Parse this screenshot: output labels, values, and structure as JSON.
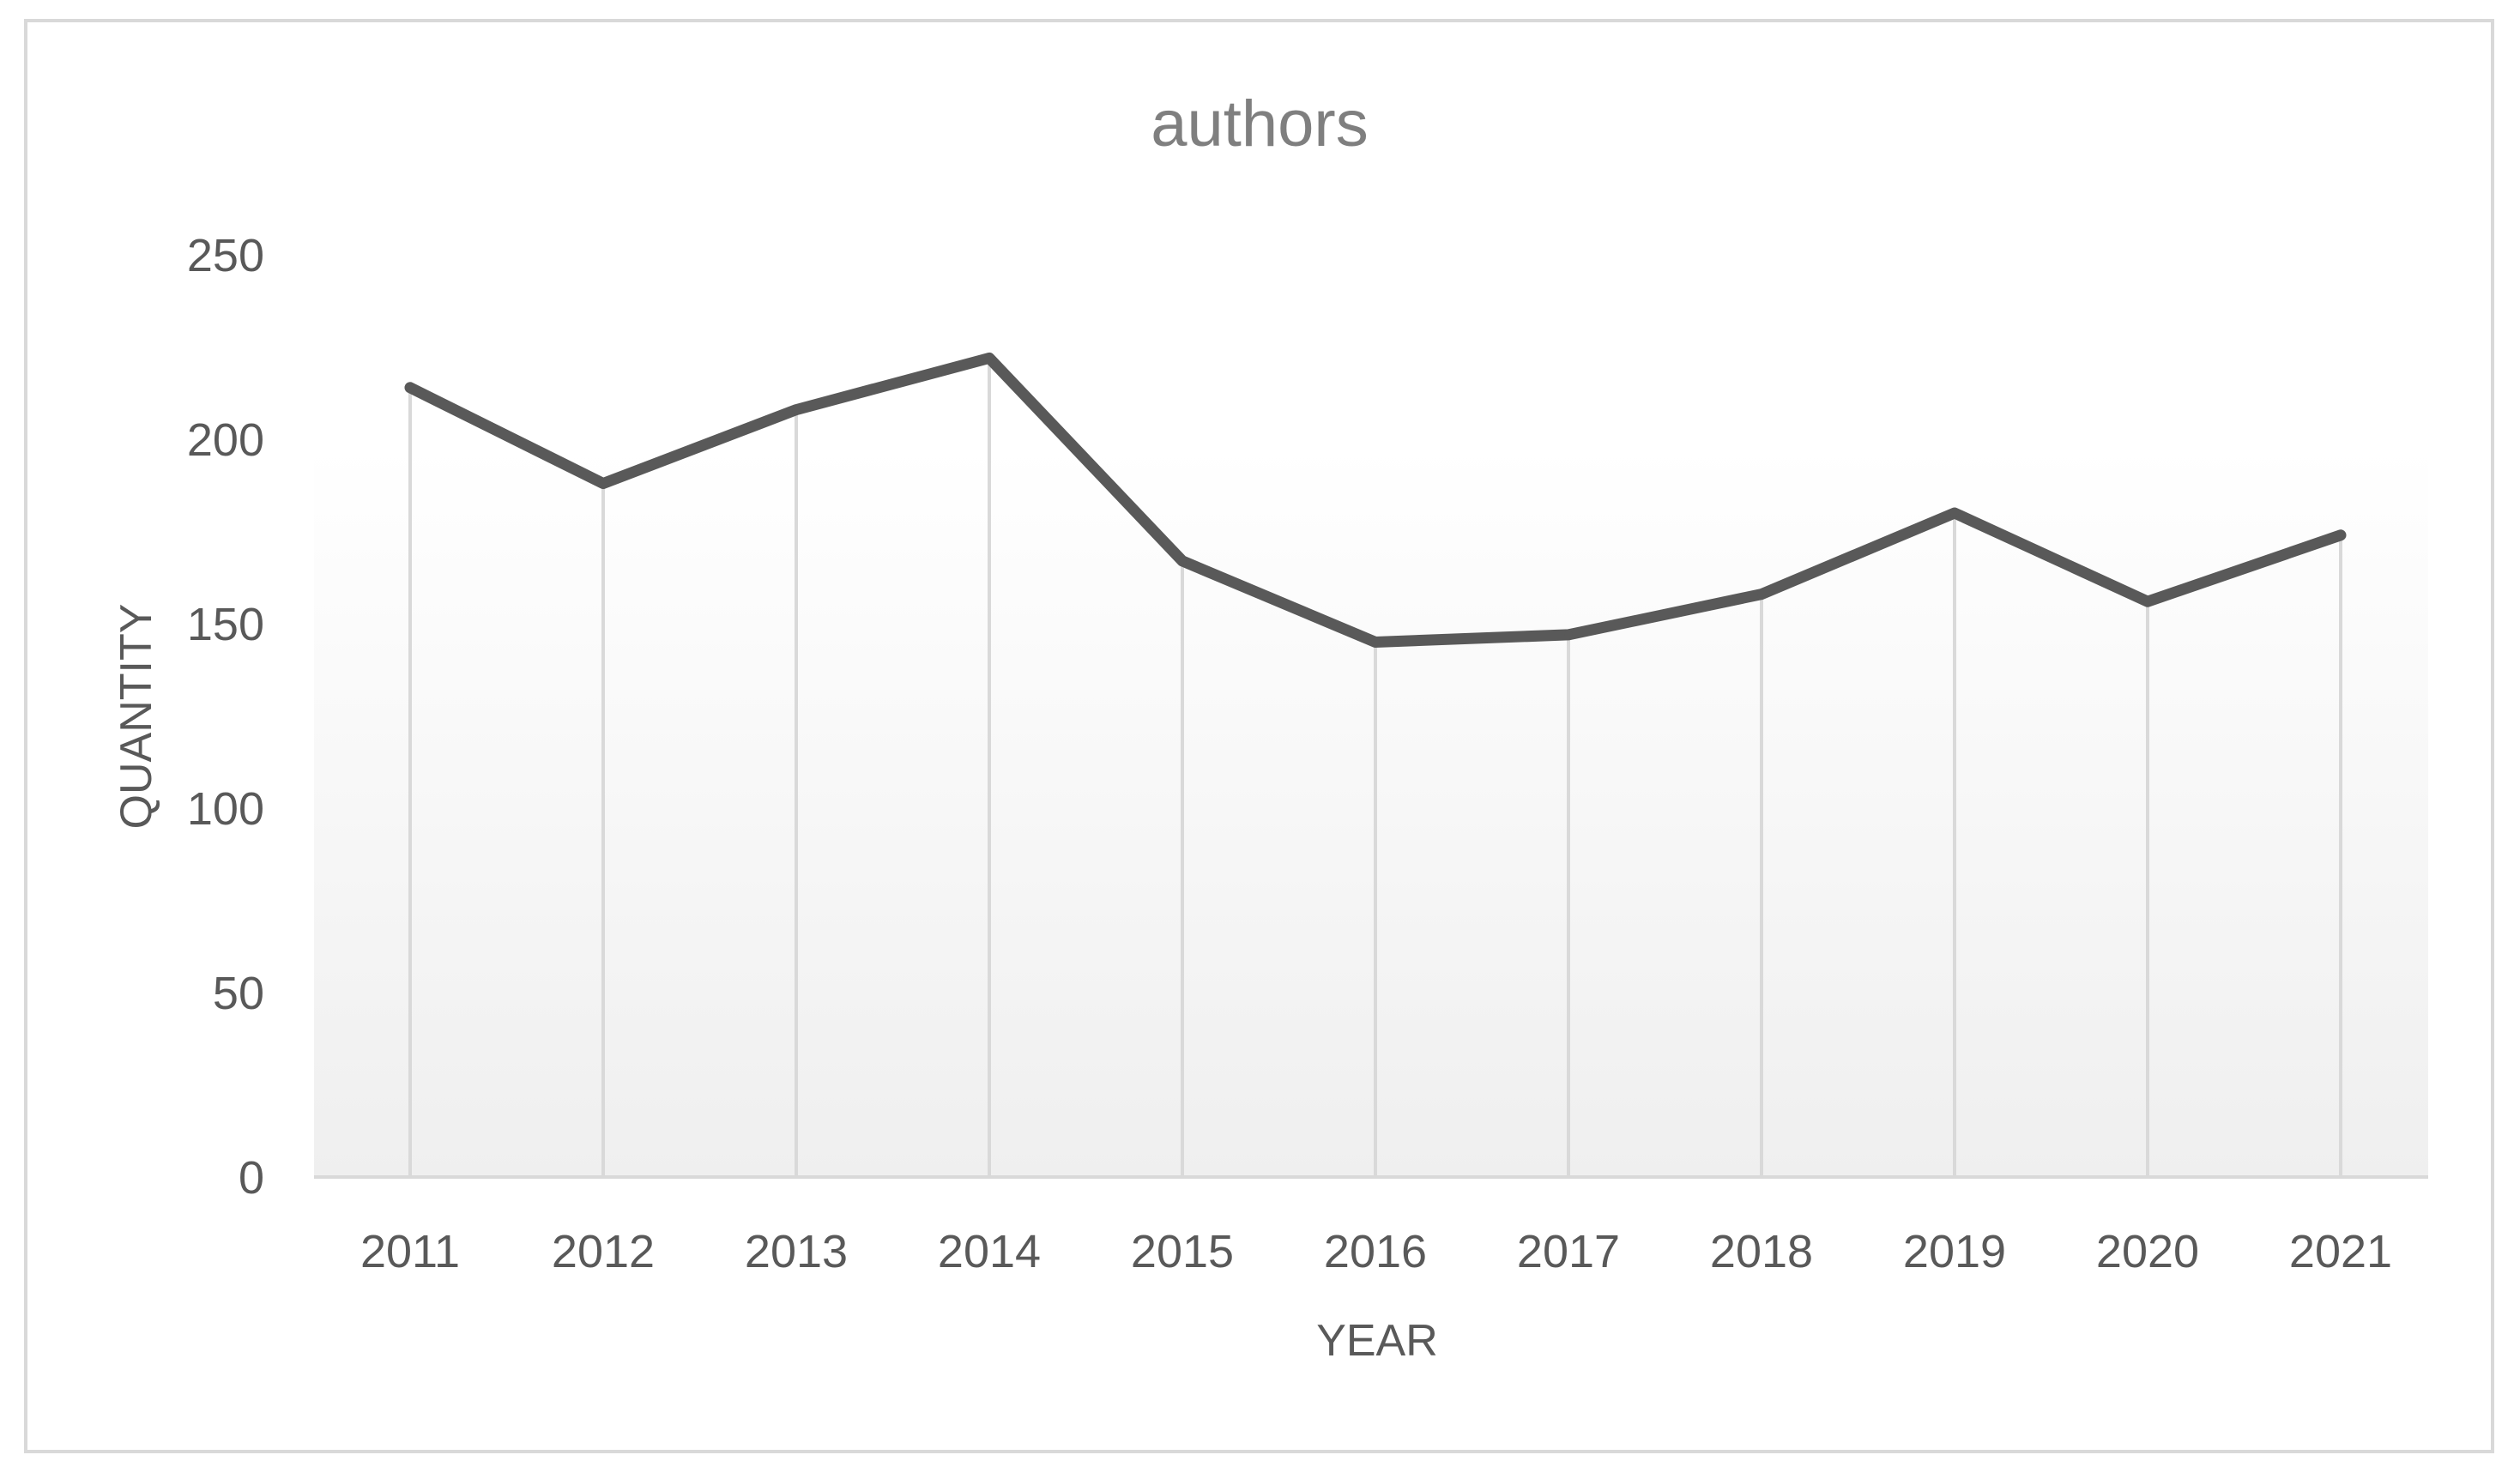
{
  "chart_data": {
    "type": "line",
    "title": "authors",
    "xlabel": "YEAR",
    "ylabel": "QUANTITY",
    "categories": [
      "2011",
      "2012",
      "2013",
      "2014",
      "2015",
      "2016",
      "2017",
      "2018",
      "2019",
      "2020",
      "2021"
    ],
    "series": [
      {
        "name": "",
        "values": [
          214,
          188,
          208,
          222,
          167,
          145,
          147,
          158,
          180,
          156,
          174
        ],
        "color": "#595959"
      }
    ],
    "ylim": [
      0,
      250
    ],
    "yticks": [
      "0",
      "50",
      "100",
      "150",
      "200",
      "250"
    ],
    "grid": "vertical drop lines at each category",
    "legend": "none",
    "colors": {
      "line": "#595959",
      "drop_lines": "#d9d9d9",
      "axis": "#d9d9d9",
      "plot_gradient_top": "#ffffff",
      "plot_gradient_bottom": "#f2f2f2"
    }
  }
}
